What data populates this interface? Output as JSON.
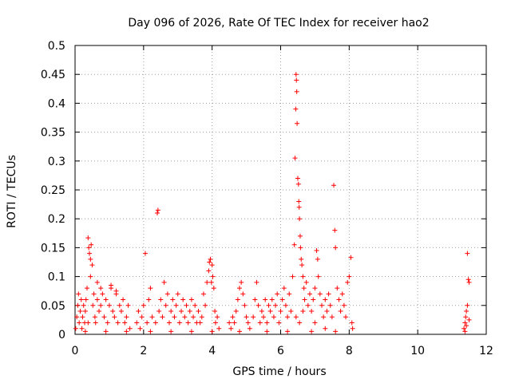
{
  "chart_data": {
    "type": "scatter",
    "title": "Day 096 of 2026, Rate Of TEC Index for receiver hao2",
    "xlabel": "GPS time / hours",
    "ylabel": "ROTI / TECUs",
    "xlim": [
      0,
      12
    ],
    "ylim": [
      0,
      0.5
    ],
    "x_ticks": [
      "0",
      "2",
      "4",
      "6",
      "8",
      "10",
      "12"
    ],
    "y_ticks": [
      "0",
      "0.05",
      "0.1",
      "0.15",
      "0.2",
      "0.25",
      "0.3",
      "0.35",
      "0.4",
      "0.45",
      "0.5"
    ],
    "grid": true,
    "marker": "plus",
    "color": "#ff0000",
    "series": [
      {
        "values": [
          [
            0.02,
            0.01
          ],
          [
            0.05,
            0.03
          ],
          [
            0.08,
            0.05
          ],
          [
            0.1,
            0.07
          ],
          [
            0.12,
            0.02
          ],
          [
            0.15,
            0.04
          ],
          [
            0.18,
            0.06
          ],
          [
            0.2,
            0.01
          ],
          [
            0.22,
            0.03
          ],
          [
            0.25,
            0.05
          ],
          [
            0.28,
            0.02
          ],
          [
            0.3,
            0.04
          ],
          [
            0.32,
            0.06
          ],
          [
            0.35,
            0.08
          ],
          [
            0.38,
            0.02
          ],
          [
            0.4,
            0.15
          ],
          [
            0.42,
            0.14
          ],
          [
            0.45,
            0.13
          ],
          [
            0.47,
            0.155
          ],
          [
            0.5,
            0.12
          ],
          [
            0.38,
            0.167
          ],
          [
            0.45,
            0.1
          ],
          [
            0.52,
            0.05
          ],
          [
            0.55,
            0.07
          ],
          [
            0.58,
            0.03
          ],
          [
            0.6,
            0.02
          ],
          [
            0.65,
            0.06
          ],
          [
            0.7,
            0.04
          ],
          [
            0.75,
            0.05
          ],
          [
            0.8,
            0.07
          ],
          [
            0.85,
            0.03
          ],
          [
            0.9,
            0.06
          ],
          [
            0.95,
            0.02
          ],
          [
            1.0,
            0.05
          ],
          [
            1.05,
            0.08
          ],
          [
            1.1,
            0.04
          ],
          [
            1.15,
            0.03
          ],
          [
            1.2,
            0.07
          ],
          [
            1.25,
            0.02
          ],
          [
            1.3,
            0.05
          ],
          [
            1.35,
            0.04
          ],
          [
            1.4,
            0.06
          ],
          [
            1.45,
            0.02
          ],
          [
            1.5,
            0.03
          ],
          [
            1.55,
            0.05
          ],
          [
            1.6,
            0.01
          ],
          [
            0.65,
            0.09
          ],
          [
            0.75,
            0.08
          ],
          [
            1.05,
            0.085
          ],
          [
            1.2,
            0.075
          ],
          [
            1.8,
            0.02
          ],
          [
            1.85,
            0.04
          ],
          [
            1.9,
            0.01
          ],
          [
            1.95,
            0.03
          ],
          [
            2.0,
            0.05
          ],
          [
            2.05,
            0.14
          ],
          [
            2.1,
            0.02
          ],
          [
            2.15,
            0.06
          ],
          [
            2.2,
            0.08
          ],
          [
            2.25,
            0.03
          ],
          [
            2.4,
            0.21
          ],
          [
            2.42,
            0.215
          ],
          [
            2.35,
            0.02
          ],
          [
            2.45,
            0.04
          ],
          [
            2.5,
            0.06
          ],
          [
            2.55,
            0.03
          ],
          [
            2.6,
            0.09
          ],
          [
            2.65,
            0.05
          ],
          [
            2.7,
            0.07
          ],
          [
            2.75,
            0.02
          ],
          [
            2.8,
            0.04
          ],
          [
            2.85,
            0.06
          ],
          [
            2.9,
            0.03
          ],
          [
            2.95,
            0.05
          ],
          [
            3.0,
            0.07
          ],
          [
            3.05,
            0.02
          ],
          [
            3.1,
            0.04
          ],
          [
            3.15,
            0.06
          ],
          [
            3.2,
            0.03
          ],
          [
            3.25,
            0.05
          ],
          [
            3.3,
            0.02
          ],
          [
            3.35,
            0.04
          ],
          [
            3.4,
            0.06
          ],
          [
            3.45,
            0.03
          ],
          [
            3.5,
            0.05
          ],
          [
            3.55,
            0.02
          ],
          [
            3.6,
            0.04
          ],
          [
            3.65,
            0.02
          ],
          [
            3.7,
            0.03
          ],
          [
            3.75,
            0.07
          ],
          [
            3.8,
            0.05
          ],
          [
            3.85,
            0.09
          ],
          [
            3.9,
            0.11
          ],
          [
            3.95,
            0.13
          ],
          [
            4.0,
            0.12
          ],
          [
            4.02,
            0.1
          ],
          [
            4.05,
            0.08
          ],
          [
            4.08,
            0.04
          ],
          [
            4.1,
            0.02
          ],
          [
            4.15,
            0.03
          ],
          [
            4.2,
            0.01
          ],
          [
            3.92,
            0.125
          ],
          [
            3.98,
            0.09
          ],
          [
            4.5,
            0.02
          ],
          [
            4.55,
            0.01
          ],
          [
            4.6,
            0.03
          ],
          [
            4.65,
            0.02
          ],
          [
            4.7,
            0.04
          ],
          [
            4.75,
            0.06
          ],
          [
            4.8,
            0.08
          ],
          [
            4.85,
            0.09
          ],
          [
            4.9,
            0.07
          ],
          [
            4.95,
            0.05
          ],
          [
            5.0,
            0.03
          ],
          [
            5.05,
            0.02
          ],
          [
            5.1,
            0.01
          ],
          [
            5.2,
            0.03
          ],
          [
            5.25,
            0.06
          ],
          [
            5.3,
            0.09
          ],
          [
            5.35,
            0.05
          ],
          [
            5.4,
            0.02
          ],
          [
            5.45,
            0.04
          ],
          [
            5.5,
            0.03
          ],
          [
            5.55,
            0.06
          ],
          [
            5.6,
            0.02
          ],
          [
            5.65,
            0.05
          ],
          [
            5.7,
            0.04
          ],
          [
            5.75,
            0.06
          ],
          [
            5.8,
            0.03
          ],
          [
            5.85,
            0.05
          ],
          [
            5.9,
            0.07
          ],
          [
            5.95,
            0.02
          ],
          [
            6.0,
            0.04
          ],
          [
            6.05,
            0.06
          ],
          [
            6.1,
            0.08
          ],
          [
            6.15,
            0.05
          ],
          [
            6.2,
            0.03
          ],
          [
            6.25,
            0.07
          ],
          [
            6.3,
            0.04
          ],
          [
            6.35,
            0.1
          ],
          [
            6.4,
            0.155
          ],
          [
            6.42,
            0.305
          ],
          [
            6.44,
            0.39
          ],
          [
            6.45,
            0.45
          ],
          [
            6.46,
            0.44
          ],
          [
            6.47,
            0.42
          ],
          [
            6.48,
            0.365
          ],
          [
            6.5,
            0.27
          ],
          [
            6.52,
            0.26
          ],
          [
            6.53,
            0.23
          ],
          [
            6.54,
            0.22
          ],
          [
            6.55,
            0.2
          ],
          [
            6.57,
            0.17
          ],
          [
            6.58,
            0.15
          ],
          [
            6.6,
            0.13
          ],
          [
            6.62,
            0.12
          ],
          [
            6.65,
            0.1
          ],
          [
            6.68,
            0.08
          ],
          [
            6.7,
            0.06
          ],
          [
            6.75,
            0.09
          ],
          [
            6.8,
            0.05
          ],
          [
            6.85,
            0.07
          ],
          [
            6.9,
            0.04
          ],
          [
            6.95,
            0.06
          ],
          [
            7.0,
            0.08
          ],
          [
            7.05,
            0.145
          ],
          [
            7.08,
            0.13
          ],
          [
            7.1,
            0.1
          ],
          [
            7.15,
            0.07
          ],
          [
            7.2,
            0.05
          ],
          [
            7.25,
            0.03
          ],
          [
            7.3,
            0.06
          ],
          [
            7.35,
            0.04
          ],
          [
            7.4,
            0.07
          ],
          [
            7.45,
            0.05
          ],
          [
            7.5,
            0.03
          ],
          [
            7.55,
            0.258
          ],
          [
            7.58,
            0.18
          ],
          [
            7.6,
            0.15
          ],
          [
            7.65,
            0.08
          ],
          [
            7.7,
            0.06
          ],
          [
            7.75,
            0.04
          ],
          [
            7.8,
            0.07
          ],
          [
            7.85,
            0.05
          ],
          [
            7.9,
            0.03
          ],
          [
            7.95,
            0.09
          ],
          [
            8.0,
            0.1
          ],
          [
            8.05,
            0.133
          ],
          [
            8.08,
            0.02
          ],
          [
            8.1,
            0.01
          ],
          [
            6.45,
            0.03
          ],
          [
            6.55,
            0.02
          ],
          [
            6.65,
            0.04
          ],
          [
            7.0,
            0.02
          ],
          [
            7.3,
            0.01
          ],
          [
            0.3,
            0.005
          ],
          [
            0.9,
            0.005
          ],
          [
            1.5,
            0.005
          ],
          [
            2.2,
            0.005
          ],
          [
            2.8,
            0.005
          ],
          [
            3.4,
            0.005
          ],
          [
            4.0,
            0.005
          ],
          [
            4.8,
            0.005
          ],
          [
            5.6,
            0.005
          ],
          [
            6.2,
            0.005
          ],
          [
            6.9,
            0.005
          ],
          [
            7.6,
            0.005
          ],
          [
            11.35,
            0.01
          ],
          [
            11.38,
            0.02
          ],
          [
            11.4,
            0.03
          ],
          [
            11.42,
            0.04
          ],
          [
            11.45,
            0.14
          ],
          [
            11.48,
            0.095
          ],
          [
            11.5,
            0.09
          ],
          [
            11.45,
            0.05
          ],
          [
            11.38,
            0.005
          ],
          [
            11.42,
            0.015
          ],
          [
            11.5,
            0.025
          ]
        ]
      }
    ]
  }
}
